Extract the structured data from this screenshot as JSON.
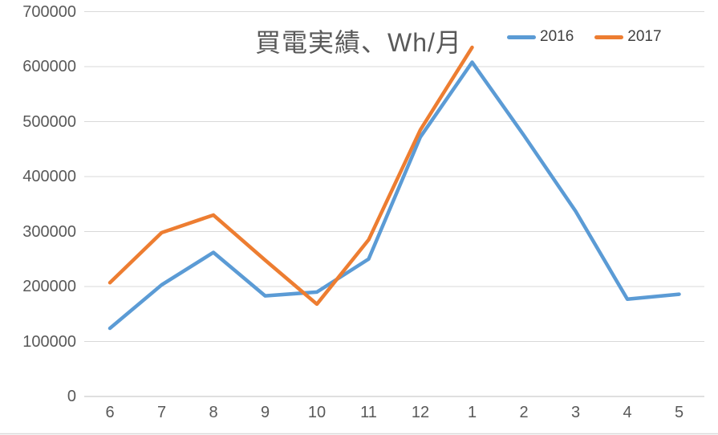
{
  "chart": {
    "title": "買電実績、Wh/月",
    "legend": [
      {
        "label": "2016",
        "color": "#5B9BD5"
      },
      {
        "label": "2017",
        "color": "#ED7D31"
      }
    ]
  },
  "chart_data": {
    "type": "line",
    "title": "買電実績、Wh/月",
    "categories": [
      "6",
      "7",
      "8",
      "9",
      "10",
      "11",
      "12",
      "1",
      "2",
      "3",
      "4",
      "5"
    ],
    "series": [
      {
        "name": "2016",
        "color": "#5B9BD5",
        "values": [
          124000,
          203000,
          262000,
          183000,
          190000,
          250000,
          472000,
          608000,
          475000,
          337000,
          177000,
          186000
        ]
      },
      {
        "name": "2017",
        "color": "#ED7D31",
        "values": [
          207000,
          298000,
          330000,
          248000,
          168000,
          285000,
          485000,
          635000,
          null,
          null,
          null,
          null
        ]
      }
    ],
    "xlabel": "",
    "ylabel": "",
    "ylim": [
      0,
      700000
    ],
    "ytick_step": 100000,
    "yticks": [
      "0",
      "100000",
      "200000",
      "300000",
      "400000",
      "500000",
      "600000",
      "700000"
    ],
    "grid": true,
    "legend_position": "top-right"
  },
  "colors": {
    "background": "#FFFFFF",
    "gridline": "#D9D9D9",
    "axis_line": "#BFBFBF",
    "text": "#595959",
    "series_2016": "#5B9BD5",
    "series_2017": "#ED7D31"
  }
}
